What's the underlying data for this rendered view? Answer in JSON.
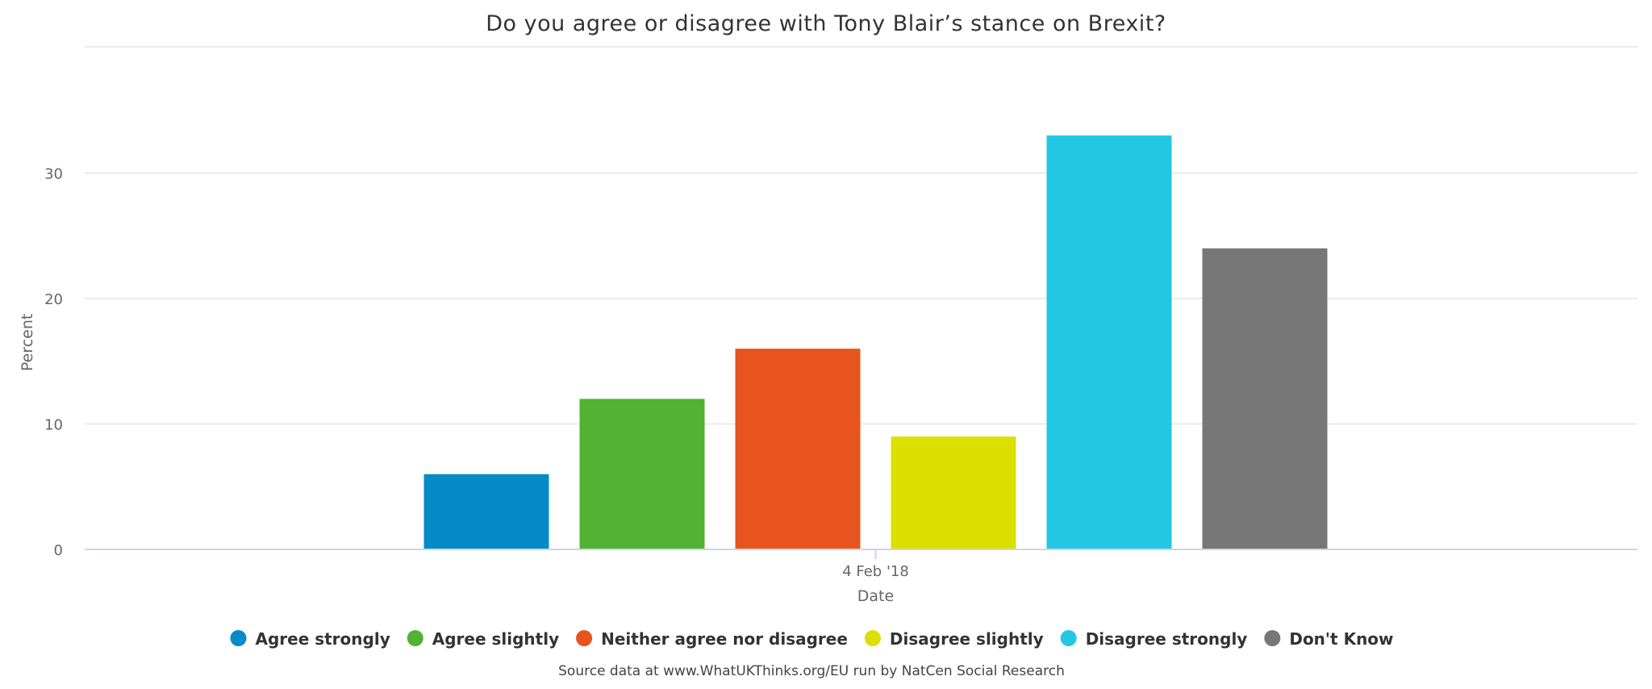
{
  "chart_data": {
    "type": "bar",
    "title": "Do you agree or disagree with Tony Blair’s stance on Brexit?",
    "xlabel": "Date",
    "ylabel": "Percent",
    "categories": [
      "4 Feb '18"
    ],
    "ylim": [
      0,
      33
    ],
    "yticks": [
      0,
      10,
      20,
      30
    ],
    "grid": true,
    "legend_position": "bottom",
    "series": [
      {
        "name": "Agree strongly",
        "values": [
          6
        ],
        "color": "#078bc7"
      },
      {
        "name": "Agree slightly",
        "values": [
          12
        ],
        "color": "#52b233"
      },
      {
        "name": "Neither agree nor disagree",
        "values": [
          16
        ],
        "color": "#e8541e"
      },
      {
        "name": "Disagree slightly",
        "values": [
          9
        ],
        "color": "#dce000"
      },
      {
        "name": "Disagree strongly",
        "values": [
          33
        ],
        "color": "#22c8e3"
      },
      {
        "name": "Don't Know",
        "values": [
          24
        ],
        "color": "#777777"
      }
    ],
    "source": "Source data at www.WhatUKThinks.org/EU run by NatCen Social Research"
  }
}
